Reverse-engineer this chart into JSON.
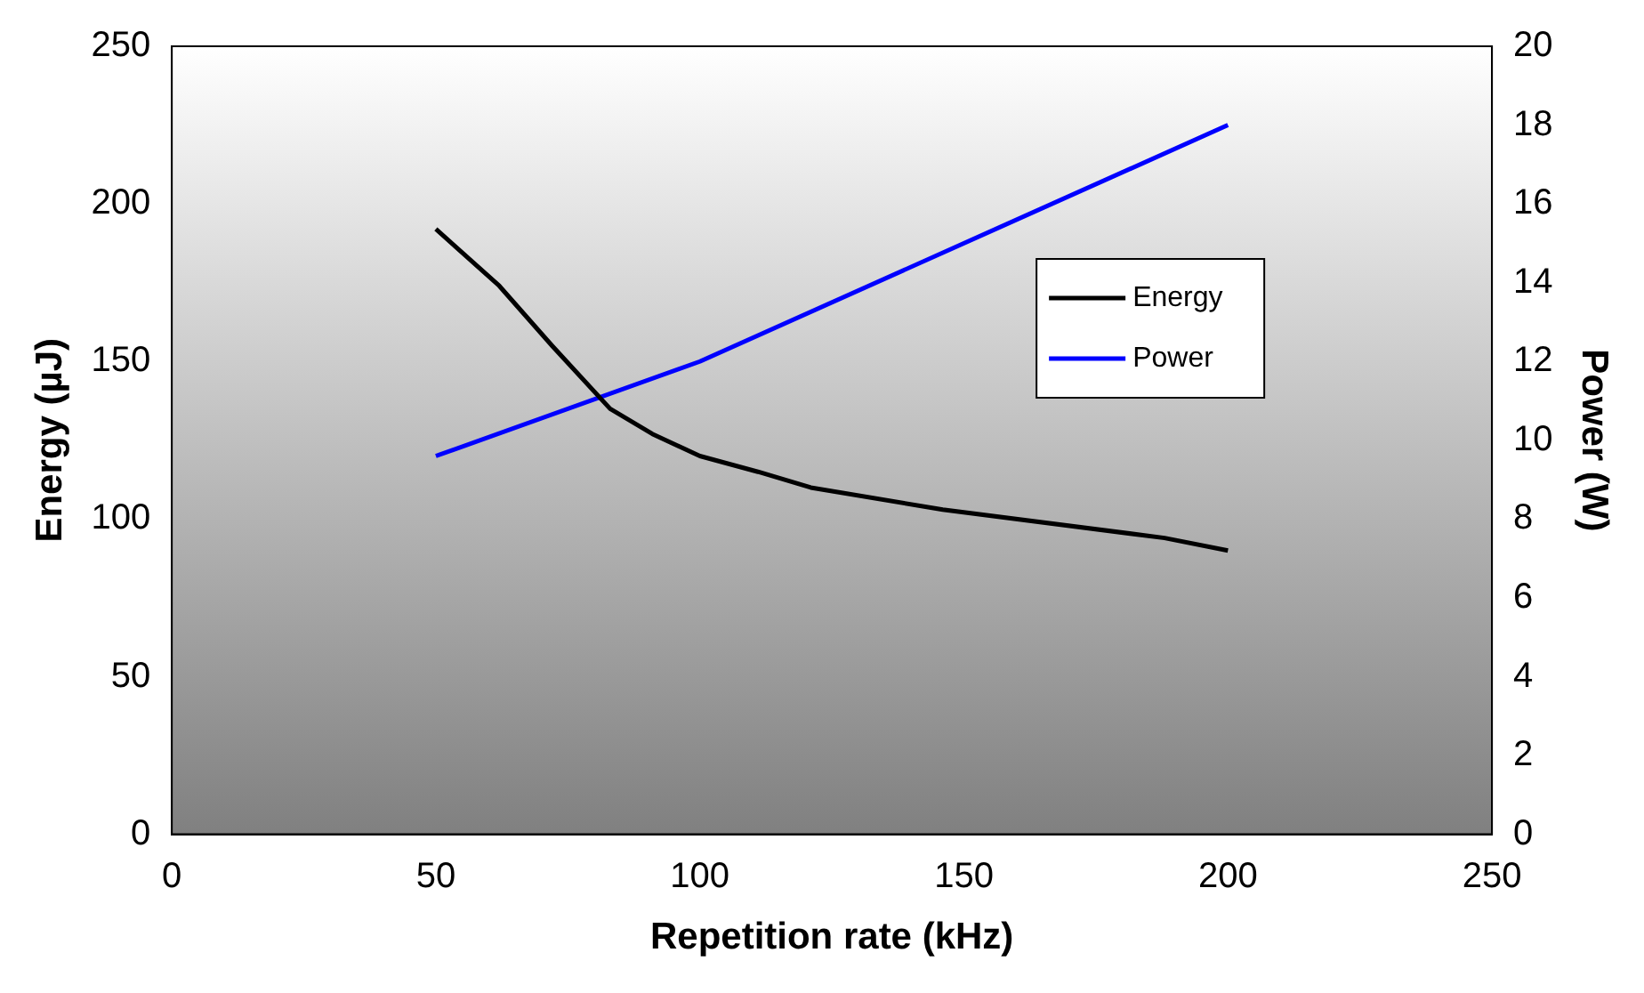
{
  "chart_data": {
    "type": "line",
    "xlabel": "Repetition rate (kHz)",
    "ylabel": "Energy (µJ)",
    "y2label": "Power (W)",
    "xlim": [
      0,
      250
    ],
    "xticks": [
      0,
      50,
      100,
      150,
      200,
      250
    ],
    "ylim": [
      0,
      250
    ],
    "yticks": [
      0,
      50,
      100,
      150,
      200,
      250
    ],
    "y2lim": [
      0,
      20
    ],
    "y2ticks": [
      0,
      2,
      4,
      6,
      8,
      10,
      12,
      14,
      16,
      18,
      20
    ],
    "grid": false,
    "legend": "right",
    "marker": "none",
    "line_style": "solid",
    "series": [
      {
        "name": "Energy",
        "color": "#000000",
        "x": [
          50,
          62,
          72,
          83,
          91,
          100,
          111,
          121,
          146,
          188,
          200
        ],
        "values": [
          192,
          174,
          155,
          135,
          127,
          120,
          115,
          110,
          103,
          94,
          90
        ]
      },
      {
        "name": "Power",
        "color": "#0000ff",
        "axis": "y2",
        "x": [
          50,
          100,
          200
        ],
        "values": [
          9.6,
          12,
          18
        ]
      }
    ]
  }
}
